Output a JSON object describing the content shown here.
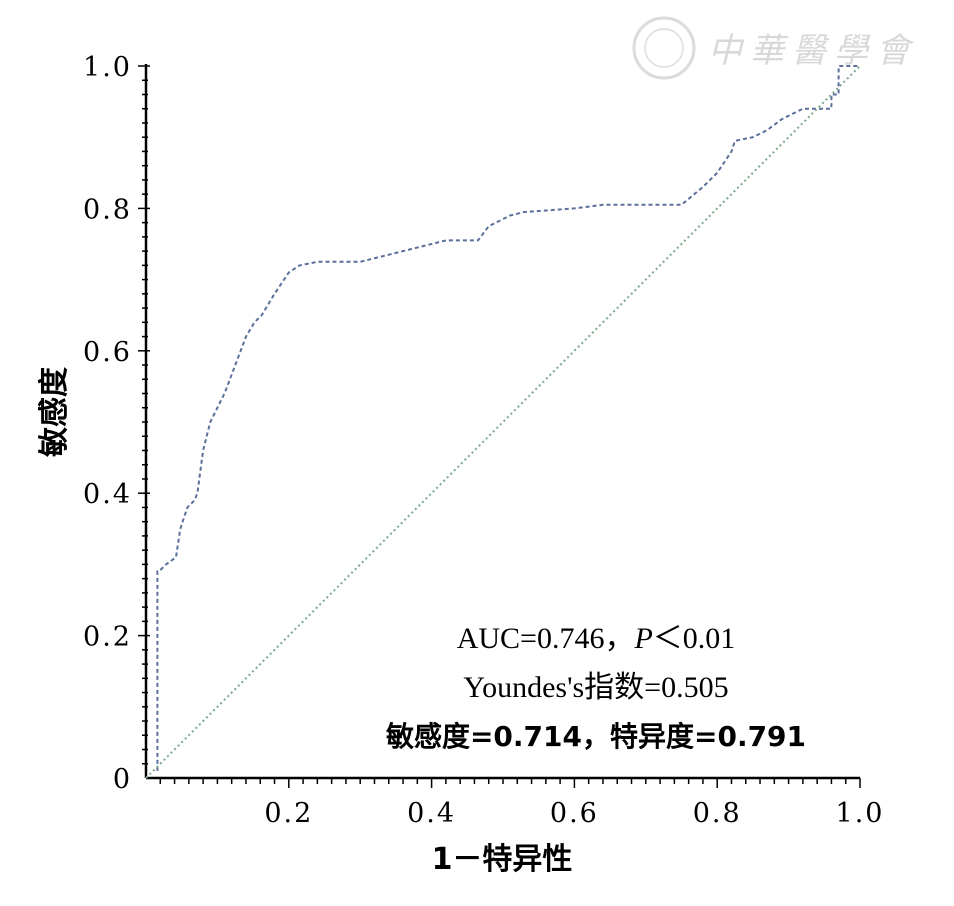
{
  "chart_data": {
    "type": "line",
    "xlabel": "1－特异性",
    "ylabel": "敏感度",
    "xlim": [
      0,
      1.0
    ],
    "ylim": [
      0,
      1.0
    ],
    "x_ticks": [
      "0.2",
      "0.4",
      "0.6",
      "0.8",
      "1.0"
    ],
    "y_ticks": [
      "0",
      "0.2",
      "0.4",
      "0.6",
      "0.8",
      "1.0"
    ],
    "grid": false,
    "series": [
      {
        "color": "#5a6f9a",
        "style": "dashed",
        "x": [
          0.016,
          0.016,
          0.018,
          0.028,
          0.042,
          0.048,
          0.058,
          0.068,
          0.072,
          0.08,
          0.09,
          0.11,
          0.125,
          0.14,
          0.152,
          0.162,
          0.18,
          0.2,
          0.215,
          0.24,
          0.3,
          0.34,
          0.36,
          0.4,
          0.42,
          0.465,
          0.48,
          0.51,
          0.53,
          0.6,
          0.64,
          0.75,
          0.78,
          0.8,
          0.82,
          0.825,
          0.85,
          0.87,
          0.89,
          0.92,
          0.96,
          0.96,
          0.97,
          0.97,
          1.0
        ],
        "y": [
          0.01,
          0.29,
          0.29,
          0.3,
          0.31,
          0.35,
          0.38,
          0.39,
          0.4,
          0.46,
          0.5,
          0.54,
          0.58,
          0.62,
          0.64,
          0.65,
          0.68,
          0.71,
          0.72,
          0.725,
          0.725,
          0.735,
          0.74,
          0.75,
          0.755,
          0.755,
          0.775,
          0.79,
          0.795,
          0.8,
          0.805,
          0.805,
          0.83,
          0.85,
          0.88,
          0.895,
          0.9,
          0.91,
          0.925,
          0.94,
          0.94,
          0.96,
          0.96,
          1.0,
          1.0
        ]
      },
      {
        "color": "#7fa88a",
        "style": "dotted",
        "x": [
          0.0,
          1.0
        ],
        "y": [
          0.0,
          1.0
        ]
      }
    ],
    "annotations": [
      {
        "text": "AUC=0.746，",
        "italic_part": "P",
        "tail": "＜0.01"
      },
      {
        "text": "Youndes's指数=0.505"
      },
      {
        "text": "敏感度=0.714，特异度=0.791"
      }
    ]
  },
  "watermark": "中華醫學會"
}
